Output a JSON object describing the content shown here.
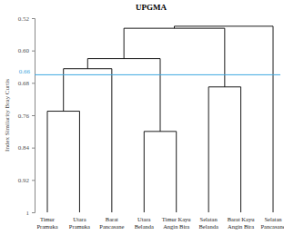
{
  "chart_data": {
    "type": "dendrogram",
    "title": "UPGMA",
    "y_label": "Index Similarity Bray Curtis",
    "leaves": [
      "Timur Pramuka",
      "Utara Pramuka",
      "Barat Pancasane",
      "Utara Belanda",
      "Timur Kayu Angin Bira",
      "Selatan Belanda",
      "Barat Kayu Angin Bira",
      "Selatan Pancasane"
    ],
    "merges": [
      {
        "children": [
          0,
          1
        ],
        "height": 0.75
      },
      {
        "children": [
          8,
          2
        ],
        "height": 0.645
      },
      {
        "children": [
          3,
          4
        ],
        "height": 0.8
      },
      {
        "children": [
          9,
          10
        ],
        "height": 0.62
      },
      {
        "children": [
          5,
          6
        ],
        "height": 0.69
      },
      {
        "children": [
          11,
          12
        ],
        "height": 0.545
      },
      {
        "children": [
          13,
          7
        ],
        "height": 0.54
      }
    ],
    "ylim": [
      0.52,
      1
    ],
    "yticks": [
      {
        "value": 0.52,
        "label": "0.52"
      },
      {
        "value": 0.6,
        "label": "0.60"
      },
      {
        "value": 0.68,
        "label": "0.68"
      },
      {
        "value": 0.76,
        "label": "0.76"
      },
      {
        "value": 0.84,
        "label": "0.84"
      },
      {
        "value": 0.92,
        "label": "0.92"
      },
      1
    ],
    "cut_line": {
      "value": 0.66,
      "label": "0.66",
      "color": "#3fa9e0"
    },
    "color": "#000000"
  }
}
